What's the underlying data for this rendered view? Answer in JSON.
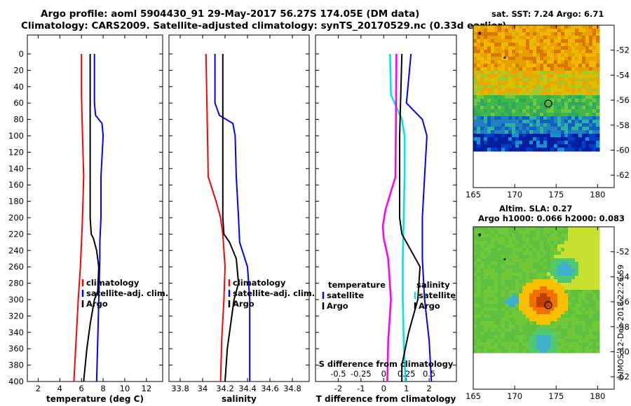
{
  "header": {
    "title_line1": "Argo profile: aoml 5904430_91 29-May-2017 56.27S 174.05E (DM data)",
    "title_line2": "Climatology: CARS2009. Satellite-adjusted climatology: synTS_20170529.nc (0.33d earlier)"
  },
  "colors": {
    "argo": "#000000",
    "climatology": "#ff0000",
    "satellite": "#0000ff",
    "cyan": "#00e5e5",
    "magenta": "#ff00ff"
  },
  "chart_data": [
    {
      "type": "line",
      "id": "temperature",
      "xlabel": "temperature (deg C)",
      "ylabel": "",
      "xlim": [
        1,
        13.5
      ],
      "ylim": [
        400,
        0
      ],
      "xticks": [
        2,
        4,
        6,
        8,
        10,
        12
      ],
      "yticks": [
        0,
        20,
        40,
        60,
        80,
        100,
        120,
        140,
        160,
        180,
        200,
        220,
        240,
        260,
        280,
        300,
        320,
        340,
        360,
        380,
        400
      ],
      "legend": [
        "climatology",
        "satellite-adj. clim.",
        "Argo"
      ],
      "series": [
        {
          "name": "climatology",
          "color": "red",
          "depth": [
            0,
            50,
            100,
            150,
            200,
            230,
            260,
            300,
            350,
            400
          ],
          "values": [
            6.0,
            6.0,
            6.1,
            6.2,
            6.1,
            6.0,
            5.9,
            5.7,
            5.5,
            5.3
          ]
        },
        {
          "name": "satellite-adj. clim.",
          "color": "blue",
          "depth": [
            0,
            60,
            75,
            85,
            100,
            150,
            200,
            230,
            250,
            300,
            350,
            400
          ],
          "values": [
            7.2,
            7.2,
            7.3,
            7.9,
            8.0,
            7.8,
            7.8,
            7.7,
            7.7,
            7.6,
            7.5,
            7.4
          ]
        },
        {
          "name": "Argo",
          "color": "black",
          "depth": [
            0,
            80,
            150,
            200,
            220,
            225,
            240,
            260,
            290,
            300,
            330,
            360,
            400
          ],
          "values": [
            6.8,
            6.8,
            6.8,
            6.8,
            6.9,
            7.1,
            7.4,
            7.6,
            7.5,
            7.2,
            6.8,
            6.5,
            6.2
          ]
        }
      ]
    },
    {
      "type": "line",
      "id": "salinity",
      "xlabel": "salinity",
      "ylabel": "",
      "xlim": [
        33.7,
        34.95
      ],
      "ylim": [
        400,
        0
      ],
      "xticks": [
        33.8,
        34.0,
        34.2,
        34.4,
        34.6,
        34.8
      ],
      "xticklabels": [
        "33.8",
        "34",
        "34.2",
        "34.4",
        "34.6",
        "34.8"
      ],
      "legend": [
        "climatology",
        "satellite-adj. clim.",
        "Argo"
      ],
      "series": [
        {
          "name": "climatology",
          "color": "red",
          "depth": [
            0,
            150,
            180,
            200,
            220,
            260,
            300,
            350,
            400
          ],
          "values": [
            34.03,
            34.05,
            34.12,
            34.16,
            34.18,
            34.2,
            34.19,
            34.17,
            34.16
          ]
        },
        {
          "name": "satellite-adj. clim.",
          "color": "blue",
          "depth": [
            0,
            60,
            75,
            85,
            100,
            150,
            200,
            230,
            260,
            300,
            350,
            400
          ],
          "values": [
            34.11,
            34.11,
            34.15,
            34.27,
            34.29,
            34.3,
            34.32,
            34.33,
            34.4,
            34.42,
            34.42,
            34.42
          ]
        },
        {
          "name": "Argo",
          "color": "black",
          "depth": [
            0,
            100,
            200,
            220,
            230,
            250,
            280,
            300,
            330,
            360,
            400
          ],
          "values": [
            34.18,
            34.18,
            34.18,
            34.19,
            34.24,
            34.3,
            34.32,
            34.28,
            34.25,
            34.22,
            34.2
          ]
        }
      ]
    },
    {
      "type": "line",
      "id": "differences",
      "xlabel": "T difference from climatology",
      "xlabel_top": "S difference from climatology",
      "xlim": [
        -3,
        3.2
      ],
      "ylim": [
        400,
        0
      ],
      "xticks": [
        -2,
        -1,
        0,
        1,
        2
      ],
      "top_ticks": [
        -0.5,
        -0.25,
        0,
        0.25,
        0.5
      ],
      "top_ticklabels": [
        "-0.5",
        "-0.25",
        "0",
        "0.25",
        "0.5"
      ],
      "legend_left": [
        "temperature",
        "satellite",
        "Argo"
      ],
      "legend_right": [
        "salinity",
        "satellite",
        "Argo"
      ],
      "series": [
        {
          "name": "salinity satellite",
          "color": "cyan",
          "unit": "S",
          "depth": [
            0,
            50,
            80,
            100,
            150,
            200,
            250,
            300,
            350,
            400
          ],
          "values": [
            0.07,
            0.08,
            0.2,
            0.23,
            0.23,
            0.22,
            0.21,
            0.21,
            0.22,
            0.24
          ]
        },
        {
          "name": "temperature satellite",
          "color": "blue",
          "depth": [
            0,
            60,
            80,
            100,
            150,
            200,
            250,
            300,
            350,
            400
          ],
          "values": [
            1.2,
            1.0,
            1.7,
            1.9,
            1.8,
            1.7,
            1.7,
            1.8,
            2.0,
            2.1
          ]
        },
        {
          "name": "salinity Argo",
          "color": "magenta",
          "unit": "S",
          "depth": [
            0,
            150,
            190,
            210,
            225,
            250,
            300,
            350,
            400
          ],
          "values": [
            0.14,
            0.13,
            0.02,
            -0.01,
            0.0,
            0.05,
            0.08,
            0.05,
            0.04
          ]
        },
        {
          "name": "temperature Argo",
          "color": "black",
          "depth": [
            0,
            100,
            200,
            220,
            240,
            260,
            300,
            340,
            380,
            400
          ],
          "values": [
            0.8,
            0.7,
            0.7,
            0.8,
            1.2,
            1.6,
            1.5,
            1.1,
            0.8,
            0.8
          ]
        }
      ]
    },
    {
      "type": "heatmap",
      "id": "sst-map",
      "title": "sat. SST: 7.24 Argo: 6.71",
      "xticks": [
        165,
        170,
        175,
        180
      ],
      "yticks": [
        -52,
        -54,
        -56,
        -58,
        -60,
        -62
      ],
      "xlim": [
        165,
        182
      ],
      "ylim": [
        -63,
        -50
      ],
      "argo_position": {
        "lon": 174.05,
        "lat": -56.27
      }
    },
    {
      "type": "heatmap",
      "id": "sla-map",
      "title": "Altim. SLA: 0.27",
      "subtitle": "Argo h1000: 0.066 h2000: 0.083",
      "xticks": [
        165,
        170,
        175,
        180
      ],
      "yticks": [
        -52,
        -54,
        -56,
        -58,
        -60,
        -62
      ],
      "xlim": [
        165,
        182
      ],
      "ylim": [
        -63,
        -50
      ],
      "argo_position": {
        "lon": 174.05,
        "lat": -56.27
      }
    }
  ],
  "footer": {
    "credit": "©IMOS 12-Dec-2018 22:26:59"
  }
}
